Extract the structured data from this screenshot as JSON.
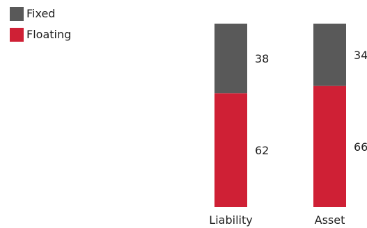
{
  "legend": {
    "fixed": {
      "label": "Fixed",
      "color": "#595959"
    },
    "floating": {
      "label": "Floating",
      "color": "#cf2035"
    }
  },
  "chart_data": {
    "type": "bar",
    "stacked": true,
    "categories": [
      "Liability",
      "Asset"
    ],
    "series": [
      {
        "name": "Fixed",
        "values": [
          38,
          34
        ],
        "color": "#595959"
      },
      {
        "name": "Floating",
        "values": [
          62,
          66
        ],
        "color": "#cf2035"
      }
    ],
    "ylim": [
      0,
      100
    ],
    "legend_position": "top-left",
    "grid": false
  }
}
